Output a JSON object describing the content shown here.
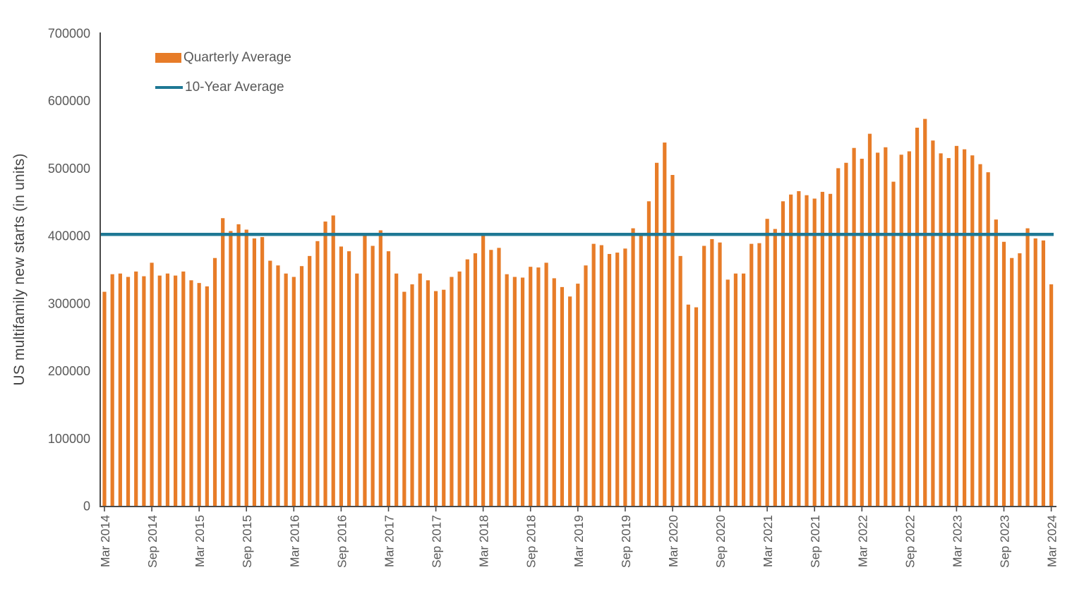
{
  "colors": {
    "bar": "#E77C28",
    "reference_line": "#1E7894",
    "axis": "#4A4A4A",
    "tick_text": "#595959",
    "background": "#FFFFFF"
  },
  "legend": {
    "items": [
      {
        "label": "Quarterly Average",
        "swatch": "bar"
      },
      {
        "label": "10-Year Average",
        "swatch": "line"
      }
    ]
  },
  "chart_data": {
    "type": "bar",
    "title": "",
    "xlabel": "",
    "ylabel": "US multifamily new starts (in units)",
    "ylim": [
      0,
      700000
    ],
    "y_tick_step": 100000,
    "y_tick_labels": [
      "0",
      "100000",
      "200000",
      "300000",
      "400000",
      "500000",
      "600000",
      "700000"
    ],
    "x_tick_labels": [
      "Mar 2014",
      "Sep 2014",
      "Mar 2015",
      "Sep 2015",
      "Mar 2016",
      "Sep 2016",
      "Mar 2017",
      "Sep 2017",
      "Mar 2018",
      "Sep 2018",
      "Mar 2019",
      "Sep 2019",
      "Mar 2020",
      "Sep 2020",
      "Mar 2021",
      "Sep 2021",
      "Mar 2022",
      "Sep 2022",
      "Mar 2023",
      "Sep 2023",
      "Mar 2024"
    ],
    "x_tick_every_n_bars": 6,
    "grid": false,
    "legend_position": "top-left",
    "categories": [
      "Mar 2014",
      "Apr 2014",
      "May 2014",
      "Jun 2014",
      "Jul 2014",
      "Aug 2014",
      "Sep 2014",
      "Oct 2014",
      "Nov 2014",
      "Dec 2014",
      "Jan 2015",
      "Feb 2015",
      "Mar 2015",
      "Apr 2015",
      "May 2015",
      "Jun 2015",
      "Jul 2015",
      "Aug 2015",
      "Sep 2015",
      "Oct 2015",
      "Nov 2015",
      "Dec 2015",
      "Jan 2016",
      "Feb 2016",
      "Mar 2016",
      "Apr 2016",
      "May 2016",
      "Jun 2016",
      "Jul 2016",
      "Aug 2016",
      "Sep 2016",
      "Oct 2016",
      "Nov 2016",
      "Dec 2016",
      "Jan 2017",
      "Feb 2017",
      "Mar 2017",
      "Apr 2017",
      "May 2017",
      "Jun 2017",
      "Jul 2017",
      "Aug 2017",
      "Sep 2017",
      "Oct 2017",
      "Nov 2017",
      "Dec 2017",
      "Jan 2018",
      "Feb 2018",
      "Mar 2018",
      "Apr 2018",
      "May 2018",
      "Jun 2018",
      "Jul 2018",
      "Aug 2018",
      "Sep 2018",
      "Oct 2018",
      "Nov 2018",
      "Dec 2018",
      "Jan 2019",
      "Feb 2019",
      "Mar 2019",
      "Apr 2019",
      "May 2019",
      "Jun 2019",
      "Jul 2019",
      "Aug 2019",
      "Sep 2019",
      "Oct 2019",
      "Nov 2019",
      "Dec 2019",
      "Jan 2020",
      "Feb 2020",
      "Mar 2020",
      "Apr 2020",
      "May 2020",
      "Jun 2020",
      "Jul 2020",
      "Aug 2020",
      "Sep 2020",
      "Oct 2020",
      "Nov 2020",
      "Dec 2020",
      "Jan 2021",
      "Feb 2021",
      "Mar 2021",
      "Apr 2021",
      "May 2021",
      "Jun 2021",
      "Jul 2021",
      "Aug 2021",
      "Sep 2021",
      "Oct 2021",
      "Nov 2021",
      "Dec 2021",
      "Jan 2022",
      "Feb 2022",
      "Mar 2022",
      "Apr 2022",
      "May 2022",
      "Jun 2022",
      "Jul 2022",
      "Aug 2022",
      "Sep 2022",
      "Oct 2022",
      "Nov 2022",
      "Dec 2022",
      "Jan 2023",
      "Feb 2023",
      "Mar 2023",
      "Apr 2023",
      "May 2023",
      "Jun 2023",
      "Jul 2023",
      "Aug 2023",
      "Sep 2023",
      "Oct 2023",
      "Nov 2023",
      "Dec 2023",
      "Jan 2024",
      "Feb 2024",
      "Mar 2024"
    ],
    "series": [
      {
        "name": "Quarterly Average",
        "type": "bar",
        "color": "#E77C28",
        "values": [
          317000,
          343000,
          344000,
          339000,
          347000,
          340000,
          360000,
          341000,
          344000,
          341000,
          347000,
          334000,
          330000,
          325000,
          367000,
          426000,
          407000,
          417000,
          409000,
          396000,
          398000,
          363000,
          356000,
          344000,
          339000,
          355000,
          370000,
          392000,
          421000,
          430000,
          384000,
          377000,
          344000,
          401000,
          385000,
          408000,
          377000,
          344000,
          317000,
          328000,
          344000,
          334000,
          318000,
          320000,
          339000,
          347000,
          365000,
          374000,
          400000,
          379000,
          382000,
          343000,
          339000,
          338000,
          354000,
          353000,
          360000,
          337000,
          324000,
          310000,
          329000,
          356000,
          388000,
          386000,
          373000,
          375000,
          381000,
          411000,
          400000,
          451000,
          508000,
          538000,
          490000,
          370000,
          298000,
          294000,
          385000,
          395000,
          390000,
          335000,
          344000,
          344000,
          388000,
          389000,
          425000,
          410000,
          451000,
          461000,
          466000,
          460000,
          455000,
          465000,
          462000,
          500000,
          508000,
          530000,
          514000,
          551000,
          523000,
          531000,
          480000,
          520000,
          525000,
          560000,
          573000,
          541000,
          522000,
          515000,
          533000,
          528000,
          519000,
          506000,
          494000,
          424000,
          391000,
          367000,
          374000,
          411000,
          396000,
          393000,
          328000
        ]
      },
      {
        "name": "10-Year Average",
        "type": "reference-line",
        "color": "#1E7894",
        "value": 402000
      }
    ]
  }
}
